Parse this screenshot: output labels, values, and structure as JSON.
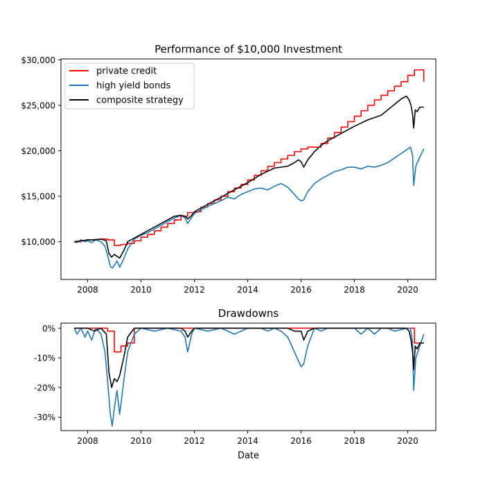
{
  "colors": {
    "private_credit": "#ff0000",
    "high_yield_bonds": "#1f77b4",
    "composite_strategy": "#000000"
  },
  "chart_data": [
    {
      "type": "line",
      "title": "Performance of $10,000 Investment",
      "xlabel": "",
      "ylabel": "",
      "xlim": [
        2007.0,
        2021.05
      ],
      "ylim": [
        5850,
        30100
      ],
      "x_ticks": [
        2008,
        2010,
        2012,
        2014,
        2016,
        2018,
        2020
      ],
      "y_ticks": [
        10000,
        15000,
        20000,
        25000,
        30000
      ],
      "y_tick_labels": [
        "$10,000",
        "$15,000",
        "$20,000",
        "$25,000",
        "$30,000"
      ],
      "legend_position": "upper left",
      "series": [
        {
          "name": "private credit",
          "color": "#ff0000",
          "step": true,
          "x": [
            2007.5,
            2007.75,
            2008.0,
            2008.25,
            2008.5,
            2008.75,
            2009.0,
            2009.25,
            2009.5,
            2009.75,
            2010.0,
            2010.25,
            2010.5,
            2010.75,
            2011.0,
            2011.25,
            2011.5,
            2011.75,
            2012.0,
            2012.25,
            2012.5,
            2012.75,
            2013.0,
            2013.25,
            2013.5,
            2013.75,
            2014.0,
            2014.25,
            2014.5,
            2014.75,
            2015.0,
            2015.25,
            2015.5,
            2015.75,
            2016.0,
            2016.25,
            2016.5,
            2016.75,
            2017.0,
            2017.25,
            2017.5,
            2017.75,
            2018.0,
            2018.25,
            2018.5,
            2018.75,
            2019.0,
            2019.25,
            2019.5,
            2019.75,
            2020.0,
            2020.25,
            2020.6
          ],
          "values": [
            10000,
            10100,
            10200,
            10250,
            10300,
            10200,
            9600,
            9700,
            9800,
            10100,
            10500,
            10800,
            11200,
            11600,
            12000,
            12400,
            12800,
            13200,
            13300,
            13800,
            14200,
            14600,
            15000,
            15500,
            15900,
            16300,
            16800,
            17300,
            17800,
            18300,
            18700,
            19100,
            19500,
            19900,
            20200,
            20400,
            20400,
            20800,
            21400,
            22000,
            22600,
            23200,
            23800,
            24400,
            25000,
            25600,
            26100,
            26600,
            27100,
            27600,
            28300,
            28900,
            27600
          ]
        },
        {
          "name": "high yield bonds",
          "color": "#1f77b4",
          "step": false,
          "x": [
            2007.5,
            2007.6,
            2007.75,
            2007.9,
            2008.0,
            2008.15,
            2008.3,
            2008.5,
            2008.65,
            2008.75,
            2008.85,
            2008.92,
            2009.0,
            2009.1,
            2009.2,
            2009.35,
            2009.5,
            2009.75,
            2010.0,
            2010.25,
            2010.5,
            2010.75,
            2011.0,
            2011.25,
            2011.5,
            2011.65,
            2011.75,
            2011.9,
            2012.0,
            2012.25,
            2012.5,
            2012.75,
            2013.0,
            2013.25,
            2013.5,
            2013.75,
            2014.0,
            2014.25,
            2014.5,
            2014.75,
            2015.0,
            2015.25,
            2015.5,
            2015.75,
            2015.9,
            2016.0,
            2016.1,
            2016.25,
            2016.5,
            2016.75,
            2017.0,
            2017.25,
            2017.5,
            2017.75,
            2018.0,
            2018.25,
            2018.5,
            2018.75,
            2019.0,
            2019.25,
            2019.5,
            2019.75,
            2020.0,
            2020.1,
            2020.18,
            2020.22,
            2020.3,
            2020.45,
            2020.6
          ],
          "values": [
            10000,
            9900,
            10200,
            10000,
            10100,
            9900,
            10200,
            10000,
            9500,
            8500,
            7300,
            7100,
            7400,
            7900,
            7200,
            8100,
            9200,
            10300,
            10700,
            11000,
            11400,
            11800,
            12200,
            12600,
            12900,
            12600,
            12000,
            12700,
            13100,
            13500,
            13900,
            14200,
            14500,
            14900,
            14700,
            15200,
            15500,
            15800,
            15900,
            15700,
            16100,
            16400,
            16000,
            15200,
            14700,
            14500,
            14600,
            15500,
            16400,
            16900,
            17300,
            17700,
            17900,
            18200,
            18200,
            18000,
            18300,
            18200,
            18400,
            18700,
            19200,
            19700,
            20200,
            20400,
            19500,
            16200,
            18300,
            19300,
            20200
          ]
        },
        {
          "name": "composite strategy",
          "color": "#000000",
          "step": false,
          "x": [
            2007.5,
            2007.75,
            2008.0,
            2008.25,
            2008.5,
            2008.7,
            2008.8,
            2008.9,
            2009.0,
            2009.1,
            2009.2,
            2009.35,
            2009.5,
            2009.75,
            2010.0,
            2010.25,
            2010.5,
            2010.75,
            2011.0,
            2011.25,
            2011.5,
            2011.65,
            2011.75,
            2011.9,
            2012.0,
            2012.5,
            2013.0,
            2013.5,
            2014.0,
            2014.5,
            2015.0,
            2015.5,
            2015.75,
            2015.9,
            2016.0,
            2016.1,
            2016.25,
            2016.5,
            2016.75,
            2017.0,
            2017.5,
            2018.0,
            2018.5,
            2019.0,
            2019.25,
            2019.5,
            2019.75,
            2019.95,
            2020.05,
            2020.12,
            2020.18,
            2020.22,
            2020.28,
            2020.35,
            2020.45,
            2020.6
          ],
          "values": [
            10000,
            10100,
            10200,
            10200,
            10300,
            10100,
            8700,
            8300,
            8600,
            8400,
            8200,
            9000,
            10000,
            10400,
            10800,
            11200,
            11600,
            12000,
            12400,
            12800,
            12900,
            12800,
            12500,
            12900,
            13300,
            14100,
            14900,
            15700,
            16500,
            17400,
            18100,
            18300,
            18700,
            19000,
            18800,
            18200,
            19000,
            19900,
            20600,
            21100,
            21900,
            22700,
            23400,
            23900,
            24500,
            25100,
            25700,
            26000,
            25600,
            25000,
            24000,
            22500,
            24500,
            24300,
            24800,
            24800
          ]
        }
      ]
    },
    {
      "type": "line",
      "title": "Drawdowns",
      "xlabel": "Date",
      "ylabel": "",
      "xlim": [
        2007.0,
        2021.05
      ],
      "ylim": [
        -0.345,
        0.017
      ],
      "x_ticks": [
        2008,
        2010,
        2012,
        2014,
        2016,
        2018,
        2020
      ],
      "y_ticks": [
        0,
        -0.1,
        -0.2,
        -0.3
      ],
      "y_tick_labels": [
        "0%",
        "-10%",
        "-20%",
        "-30%"
      ],
      "series": [
        {
          "name": "private credit",
          "color": "#ff0000",
          "step": true,
          "x": [
            2007.5,
            2008.75,
            2009.0,
            2009.25,
            2009.5,
            2009.75,
            2020.25,
            2020.6
          ],
          "values": [
            0,
            -0.01,
            -0.08,
            -0.06,
            -0.05,
            0,
            -0.05,
            -0.05
          ]
        },
        {
          "name": "high yield bonds",
          "color": "#1f77b4",
          "step": false,
          "x": [
            2007.5,
            2007.6,
            2007.75,
            2007.9,
            2008.0,
            2008.15,
            2008.3,
            2008.5,
            2008.65,
            2008.75,
            2008.85,
            2008.92,
            2009.0,
            2009.1,
            2009.2,
            2009.35,
            2009.5,
            2009.75,
            2010.0,
            2010.5,
            2011.0,
            2011.5,
            2011.65,
            2011.75,
            2011.9,
            2012.0,
            2012.5,
            2013.0,
            2013.5,
            2013.75,
            2014.0,
            2014.5,
            2014.75,
            2015.0,
            2015.25,
            2015.5,
            2015.75,
            2015.9,
            2016.0,
            2016.1,
            2016.25,
            2016.5,
            2016.75,
            2017.0,
            2018.0,
            2018.25,
            2018.5,
            2018.75,
            2019.0,
            2019.25,
            2019.5,
            2020.0,
            2020.1,
            2020.18,
            2020.22,
            2020.3,
            2020.45,
            2020.6
          ],
          "values": [
            0,
            -0.02,
            0,
            -0.03,
            -0.01,
            -0.04,
            0,
            -0.02,
            -0.08,
            -0.18,
            -0.29,
            -0.33,
            -0.27,
            -0.21,
            -0.29,
            -0.18,
            -0.08,
            -0.02,
            0,
            -0.01,
            0,
            -0.01,
            -0.03,
            -0.08,
            -0.02,
            0,
            -0.01,
            0,
            -0.02,
            -0.01,
            0,
            0,
            -0.01,
            0,
            -0.01,
            -0.03,
            -0.08,
            -0.11,
            -0.13,
            -0.12,
            -0.06,
            0,
            -0.01,
            0,
            0,
            -0.02,
            0,
            -0.02,
            0,
            0,
            -0.01,
            0,
            0,
            -0.05,
            -0.21,
            -0.1,
            -0.06,
            -0.02
          ]
        },
        {
          "name": "composite strategy",
          "color": "#000000",
          "step": false,
          "x": [
            2007.5,
            2008.0,
            2008.25,
            2008.5,
            2008.7,
            2008.8,
            2008.9,
            2009.0,
            2009.1,
            2009.2,
            2009.35,
            2009.5,
            2009.75,
            2011.5,
            2011.65,
            2011.75,
            2011.9,
            2012.0,
            2015.5,
            2015.75,
            2016.0,
            2016.1,
            2016.25,
            2016.5,
            2019.95,
            2020.05,
            2020.12,
            2020.18,
            2020.22,
            2020.28,
            2020.35,
            2020.45,
            2020.6
          ],
          "values": [
            0,
            0,
            -0.01,
            0,
            -0.02,
            -0.15,
            -0.2,
            -0.17,
            -0.18,
            -0.16,
            -0.1,
            -0.03,
            0,
            0,
            -0.01,
            -0.03,
            -0.01,
            0,
            0,
            -0.01,
            -0.01,
            -0.04,
            -0.01,
            0,
            0,
            -0.01,
            -0.04,
            -0.08,
            -0.14,
            -0.06,
            -0.07,
            -0.05,
            -0.05
          ]
        }
      ]
    }
  ]
}
